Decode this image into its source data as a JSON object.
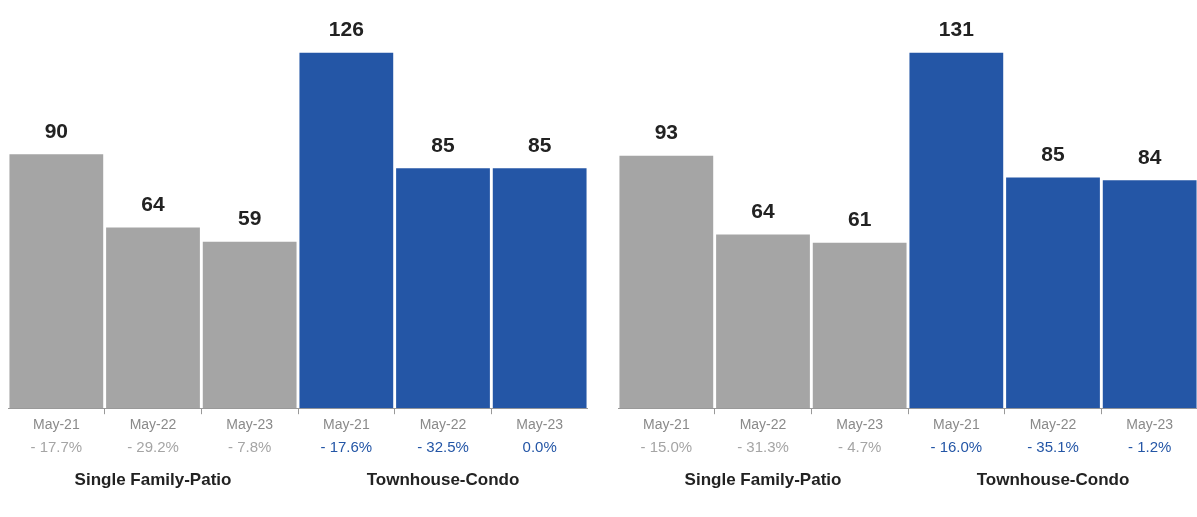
{
  "chart_data": [
    {
      "type": "bar",
      "categories": [
        "May-21",
        "May-22",
        "May-23",
        "May-21",
        "May-22",
        "May-23"
      ],
      "values": [
        90,
        64,
        59,
        126,
        85,
        85
      ],
      "colors": [
        "#a5a5a5",
        "#a5a5a5",
        "#a5a5a5",
        "#2456a6",
        "#2456a6",
        "#2456a6"
      ],
      "data_labels": true,
      "legend": false,
      "grid": false,
      "tick_labels": "x",
      "annotations": [
        "- 17.7%",
        "- 29.2%",
        "- 7.8%",
        "- 17.6%",
        "- 32.5%",
        "0.0%",
        "Single Family-Patio",
        "Townhouse-Condo"
      ]
    },
    {
      "type": "bar",
      "categories": [
        "May-21",
        "May-22",
        "May-23",
        "May-21",
        "May-22",
        "May-23"
      ],
      "values": [
        93,
        64,
        61,
        131,
        85,
        84
      ],
      "colors": [
        "#a5a5a5",
        "#a5a5a5",
        "#a5a5a5",
        "#2456a6",
        "#2456a6",
        "#2456a6"
      ],
      "data_labels": true,
      "legend": false,
      "grid": false,
      "tick_labels": "x",
      "annotations": [
        "- 15.0%",
        "- 31.3%",
        "- 4.7%",
        "- 16.0%",
        "- 35.1%",
        "- 1.2%",
        "Single Family-Patio",
        "Townhouse-Condo"
      ]
    }
  ]
}
